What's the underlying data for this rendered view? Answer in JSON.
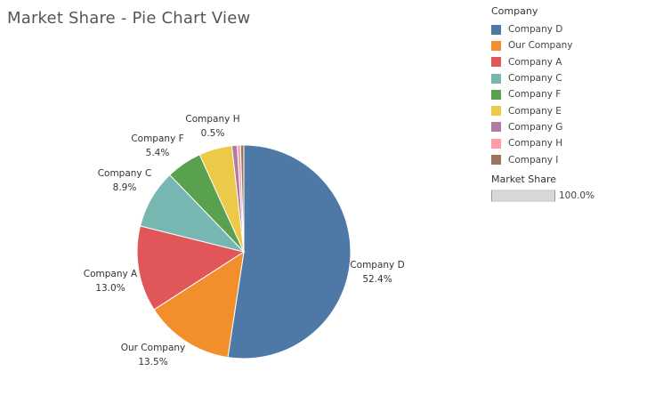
{
  "title": "Market Share - Pie Chart View",
  "legend": {
    "title": "Company",
    "items": [
      {
        "label": "Company D",
        "color": "#4e79a7"
      },
      {
        "label": "Our Company",
        "color": "#f28e2b"
      },
      {
        "label": "Company A",
        "color": "#e15759"
      },
      {
        "label": "Company C",
        "color": "#76b7b2"
      },
      {
        "label": "Company F",
        "color": "#59a14f"
      },
      {
        "label": "Company E",
        "color": "#edc948"
      },
      {
        "label": "Company G",
        "color": "#b07aa1"
      },
      {
        "label": "Company H",
        "color": "#ff9da7"
      },
      {
        "label": "Company I",
        "color": "#9c755f"
      }
    ]
  },
  "size_legend": {
    "title": "Market Share",
    "value": "100.0%"
  },
  "chart_data": {
    "type": "pie",
    "title": "Market Share - Pie Chart View",
    "legend_position": "right",
    "slices": [
      {
        "name": "Company D",
        "value": 52.4,
        "color": "#4e79a7",
        "label": "Company D",
        "value_label": "52.4%"
      },
      {
        "name": "Our Company",
        "value": 13.5,
        "color": "#f28e2b",
        "label": "Our Company",
        "value_label": "13.5%"
      },
      {
        "name": "Company A",
        "value": 13.0,
        "color": "#e15759",
        "label": "Company A",
        "value_label": "13.0%"
      },
      {
        "name": "Company C",
        "value": 8.9,
        "color": "#76b7b2",
        "label": "Company C",
        "value_label": "8.9%"
      },
      {
        "name": "Company F",
        "value": 5.4,
        "color": "#59a14f",
        "label": "Company F",
        "value_label": "5.4%"
      },
      {
        "name": "Company E",
        "value": 5.0,
        "color": "#edc948",
        "label": null,
        "value_label": null
      },
      {
        "name": "Company G",
        "value": 0.8,
        "color": "#b07aa1",
        "label": null,
        "value_label": null
      },
      {
        "name": "Company H",
        "value": 0.5,
        "color": "#ff9da7",
        "label": "Company H",
        "value_label": "0.5%"
      },
      {
        "name": "Company I",
        "value": 0.5,
        "color": "#9c755f",
        "label": null,
        "value_label": null
      }
    ]
  }
}
